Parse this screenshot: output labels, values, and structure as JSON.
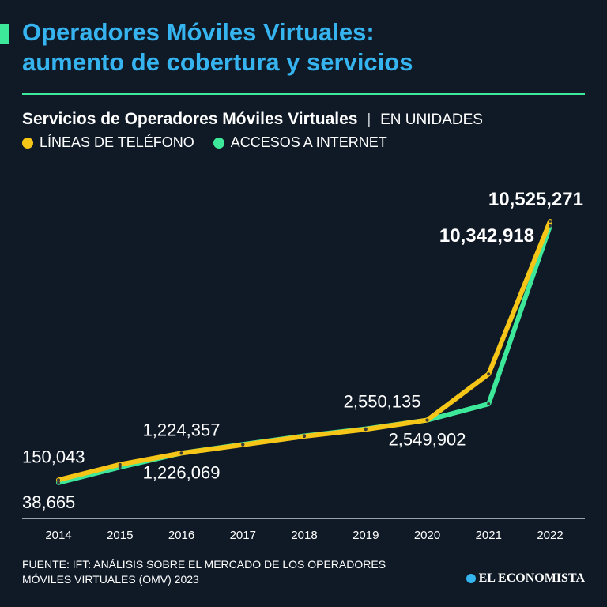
{
  "header": {
    "title_line1": "Operadores Móviles Virtuales:",
    "title_line2": "aumento de cobertura y servicios"
  },
  "subtitle": {
    "main": "Servicios de Operadores Móviles Virtuales",
    "separator": "|",
    "unit": "EN UNIDADES"
  },
  "legend": [
    {
      "label": "LÍNEAS DE TELÉFONO",
      "color": "#f5c518"
    },
    {
      "label": "ACCESOS A INTERNET",
      "color": "#3ee89a"
    }
  ],
  "chart_data": {
    "type": "line",
    "title": "Servicios de Operadores Móviles Virtuales",
    "xlabel": "",
    "ylabel": "EN UNIDADES",
    "categories": [
      "2014",
      "2015",
      "2016",
      "2017",
      "2018",
      "2019",
      "2020",
      "2021",
      "2022"
    ],
    "ylim": [
      0,
      11000000
    ],
    "series": [
      {
        "name": "LÍNEAS DE TELÉFONO",
        "color": "#f5c518",
        "values": [
          150043,
          770000,
          1224357,
          1560000,
          1900000,
          2180000,
          2550135,
          4400000,
          10525271
        ],
        "labels": [
          {
            "index": 0,
            "text": "150,043",
            "place": "above",
            "bold": false
          },
          {
            "index": 2,
            "text": "1,224,357",
            "place": "above",
            "bold": false
          },
          {
            "index": 6,
            "text": "2,550,135",
            "place": "above-left",
            "bold": false
          },
          {
            "index": 8,
            "text": "10,525,271",
            "place": "above",
            "bold": true
          }
        ]
      },
      {
        "name": "ACCESOS A INTERNET",
        "color": "#3ee89a",
        "values": [
          38665,
          660000,
          1226069,
          1580000,
          1920000,
          2200000,
          2549902,
          3200000,
          10342918
        ],
        "labels": [
          {
            "index": 0,
            "text": "38,665",
            "place": "below",
            "bold": false
          },
          {
            "index": 2,
            "text": "1,226,069",
            "place": "below",
            "bold": false
          },
          {
            "index": 6,
            "text": "2,549,902",
            "place": "below",
            "bold": false
          },
          {
            "index": 8,
            "text": "10,342,918",
            "place": "left",
            "bold": true
          }
        ]
      }
    ]
  },
  "footer": {
    "source_line1": "FUENTE: IFT: ANÁLISIS SOBRE EL MERCADO DE LOS OPERADORES",
    "source_line2": "MÓVILES VIRTUALES (OMV) 2023",
    "brand": "EL ECONOMISTA"
  }
}
